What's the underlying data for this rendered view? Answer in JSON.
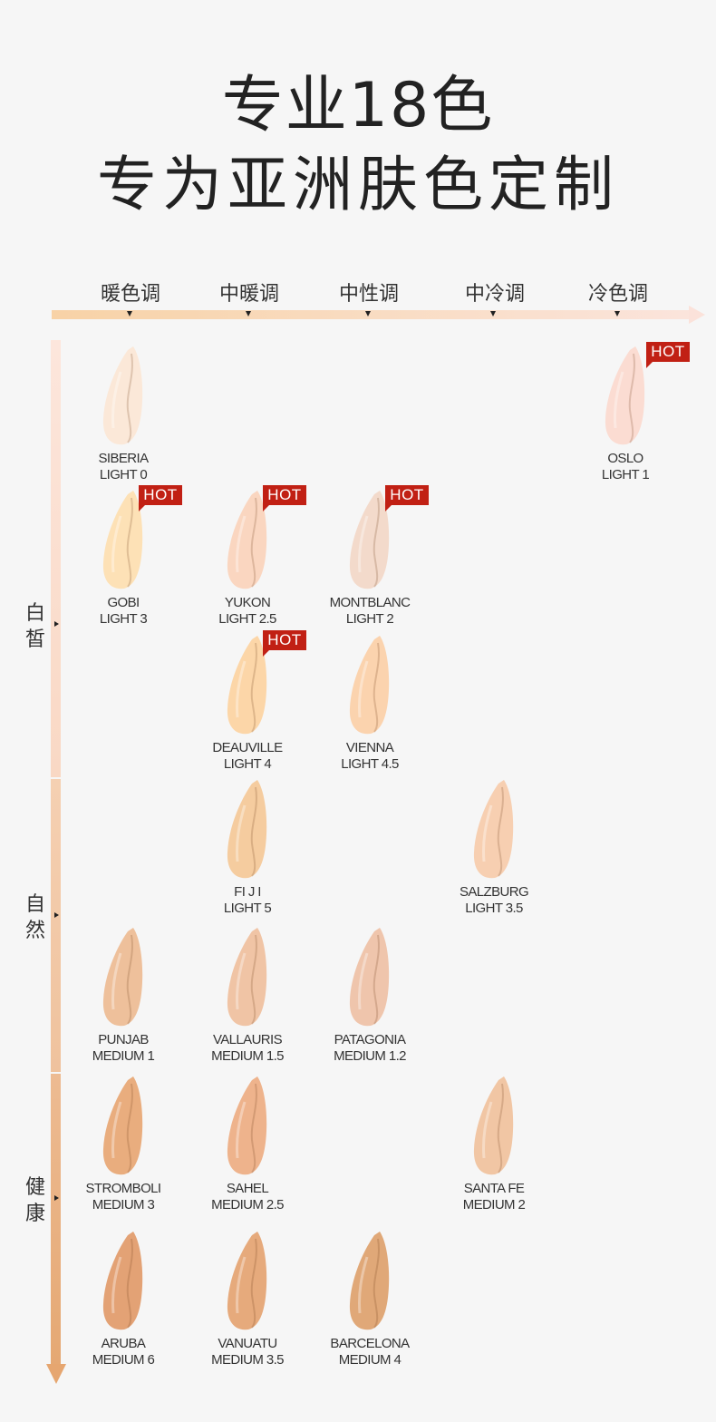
{
  "title": {
    "line1": "专业18色",
    "line2": "专为亚洲肤色定制"
  },
  "tones": [
    "暖色调",
    "中暖调",
    "中性调",
    "中冷调",
    "冷色调"
  ],
  "rows": [
    "白皙",
    "自然",
    "健康"
  ],
  "badge_label": "HOT",
  "shades": [
    {
      "name": "SIBERIA",
      "code": "LIGHT 0",
      "color": "#fbe8d8",
      "hot": false
    },
    {
      "name": "OSLO",
      "code": "LIGHT 1",
      "color": "#fbdcd2",
      "hot": true
    },
    {
      "name": "GOBI",
      "code": "LIGHT 3",
      "color": "#fde1b6",
      "hot": true
    },
    {
      "name": "YUKON",
      "code": "LIGHT 2.5",
      "color": "#fad6c0",
      "hot": true
    },
    {
      "name": "MONTBLANC",
      "code": "LIGHT 2",
      "color": "#f3dacb",
      "hot": true
    },
    {
      "name": "DEAUVILLE",
      "code": "LIGHT 4",
      "color": "#fcd6a8",
      "hot": true
    },
    {
      "name": "VIENNA",
      "code": "LIGHT 4.5",
      "color": "#fbd3ae",
      "hot": false
    },
    {
      "name": "FI J I",
      "code": "LIGHT 5",
      "color": "#f5cc9f",
      "hot": false
    },
    {
      "name": "SALZBURG",
      "code": "LIGHT 3.5",
      "color": "#f7cfb1",
      "hot": false
    },
    {
      "name": "PUNJAB",
      "code": "MEDIUM 1",
      "color": "#eec09b",
      "hot": false
    },
    {
      "name": "VALLAURIS",
      "code": "MEDIUM 1.5",
      "color": "#f0c4a5",
      "hot": false
    },
    {
      "name": "PATAGONIA",
      "code": "MEDIUM 1.2",
      "color": "#efc5ac",
      "hot": false
    },
    {
      "name": "STROMBOLI",
      "code": "MEDIUM 3",
      "color": "#e9ad7e",
      "hot": false
    },
    {
      "name": "SAHEL",
      "code": "MEDIUM 2.5",
      "color": "#eeb38c",
      "hot": false
    },
    {
      "name": "SANTA FE",
      "code": "MEDIUM 2",
      "color": "#f1c6a4",
      "hot": false
    },
    {
      "name": "ARUBA",
      "code": "MEDIUM 6",
      "color": "#e3a275",
      "hot": false
    },
    {
      "name": "VANUATU",
      "code": "MEDIUM 3.5",
      "color": "#e6aa7c",
      "hot": false
    },
    {
      "name": "BARCELONA",
      "code": "MEDIUM 4",
      "color": "#e0a878",
      "hot": false
    }
  ]
}
